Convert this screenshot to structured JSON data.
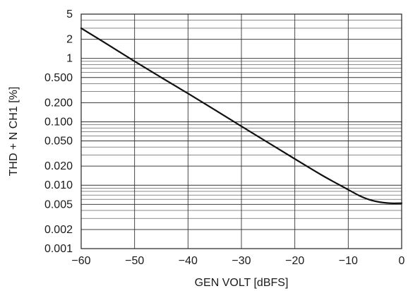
{
  "chart_data": {
    "type": "line",
    "title": "",
    "xlabel": "GEN VOLT [dBFS]",
    "ylabel": "THD + N CH1 [%]",
    "xlim": [
      -60,
      0
    ],
    "ylim": [
      0.001,
      5
    ],
    "y_scale": "log",
    "grid": true,
    "x_ticks": [
      -60,
      -50,
      -40,
      -30,
      -20,
      -10,
      0
    ],
    "x_tick_labels": [
      "−60",
      "−50",
      "−40",
      "−30",
      "−20",
      "−10",
      "0"
    ],
    "y_tick_values": [
      0.001,
      0.002,
      0.005,
      0.01,
      0.02,
      0.05,
      0.1,
      0.2,
      0.5,
      1,
      2,
      5
    ],
    "y_tick_labels": [
      "0.001",
      "0.002",
      "0.005",
      "0.010",
      "0.020",
      "0.050",
      "0.100",
      "0.200",
      "0.500",
      "1",
      "2",
      "5"
    ],
    "series": [
      {
        "x": [
          -60,
          -55,
          -50,
          -45,
          -40,
          -35,
          -30,
          -25,
          -20,
          -15,
          -12,
          -10,
          -8,
          -6,
          -4,
          -2,
          0
        ],
        "y": [
          3.0,
          1.65,
          0.9,
          0.5,
          0.28,
          0.155,
          0.085,
          0.047,
          0.026,
          0.0145,
          0.0105,
          0.0085,
          0.0069,
          0.0059,
          0.0054,
          0.0052,
          0.0052
        ]
      }
    ]
  }
}
